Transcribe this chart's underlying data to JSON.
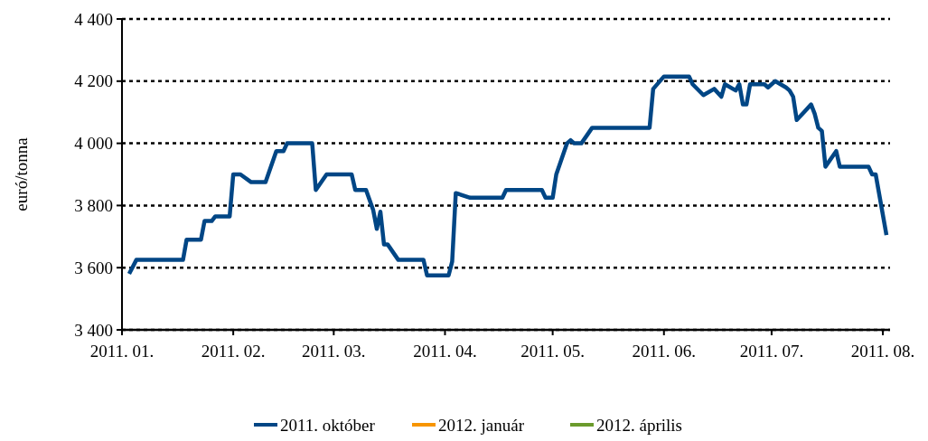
{
  "chart_data": {
    "type": "line",
    "ylabel": "euró/tonna",
    "xlim": [
      "2011-01-01",
      "2011-08-03"
    ],
    "xticks": [
      {
        "value": "2011-01-01",
        "label": "2011. 01."
      },
      {
        "value": "2011-02-01",
        "label": "2011. 02."
      },
      {
        "value": "2011-03-01",
        "label": "2011. 03."
      },
      {
        "value": "2011-04-01",
        "label": "2011. 04."
      },
      {
        "value": "2011-05-01",
        "label": "2011. 05."
      },
      {
        "value": "2011-06-01",
        "label": "2011. 06."
      },
      {
        "value": "2011-07-01",
        "label": "2011. 07."
      },
      {
        "value": "2011-08-01",
        "label": "2011. 08."
      }
    ],
    "ylim": [
      3400,
      4400
    ],
    "yticks": [
      {
        "value": 3400,
        "label": "3 400"
      },
      {
        "value": 3600,
        "label": "3 600"
      },
      {
        "value": 3800,
        "label": "3 800"
      },
      {
        "value": 4000,
        "label": "4 000"
      },
      {
        "value": 4200,
        "label": "4 200"
      },
      {
        "value": 4400,
        "label": "4 400"
      }
    ],
    "grid": "y",
    "legend": "bottom",
    "line_style": "solid",
    "marker": "none",
    "x": [
      "2011-01-03",
      "2011-01-05",
      "2011-01-18",
      "2011-01-19",
      "2011-01-23",
      "2011-01-24",
      "2011-01-26",
      "2011-01-27",
      "2011-01-31",
      "2011-02-01",
      "2011-02-03",
      "2011-02-06",
      "2011-02-10",
      "2011-02-13",
      "2011-02-15",
      "2011-02-16",
      "2011-02-23",
      "2011-02-24",
      "2011-02-27",
      "2011-03-06",
      "2011-03-07",
      "2011-03-10",
      "2011-03-12",
      "2011-03-13",
      "2011-03-14",
      "2011-03-15",
      "2011-03-16",
      "2011-03-19",
      "2011-03-26",
      "2011-03-27",
      "2011-04-02",
      "2011-04-03",
      "2011-04-04",
      "2011-04-08",
      "2011-04-17",
      "2011-04-18",
      "2011-04-28",
      "2011-04-29",
      "2011-05-01",
      "2011-05-02",
      "2011-05-05",
      "2011-05-06",
      "2011-05-07",
      "2011-05-09",
      "2011-05-12",
      "2011-05-28",
      "2011-05-29",
      "2011-06-01",
      "2011-06-08",
      "2011-06-09",
      "2011-06-12",
      "2011-06-15",
      "2011-06-17",
      "2011-06-18",
      "2011-06-21",
      "2011-06-22",
      "2011-06-23",
      "2011-06-24",
      "2011-06-25",
      "2011-06-29",
      "2011-06-30",
      "2011-07-02",
      "2011-07-05",
      "2011-07-06",
      "2011-07-07",
      "2011-07-08",
      "2011-07-10",
      "2011-07-12",
      "2011-07-13",
      "2011-07-14",
      "2011-07-15",
      "2011-07-16",
      "2011-07-19",
      "2011-07-20",
      "2011-07-28",
      "2011-07-29",
      "2011-07-30",
      "2011-08-02"
    ],
    "series": [
      {
        "name": "2011. október",
        "color": "#004685",
        "values": [
          3580,
          3625,
          3625,
          3690,
          3690,
          3750,
          3750,
          3765,
          3765,
          3900,
          3900,
          3875,
          3875,
          3975,
          3975,
          4000,
          4000,
          3850,
          3900,
          3900,
          3850,
          3850,
          3785,
          3725,
          3780,
          3675,
          3675,
          3625,
          3625,
          3575,
          3575,
          3620,
          3840,
          3825,
          3825,
          3850,
          3850,
          3825,
          3825,
          3900,
          4000,
          4010,
          4000,
          4000,
          4050,
          4050,
          4175,
          4215,
          4215,
          4190,
          4155,
          4175,
          4150,
          4190,
          4170,
          4190,
          4125,
          4125,
          4190,
          4190,
          4180,
          4200,
          4180,
          4170,
          4150,
          4075,
          4100,
          4125,
          4095,
          4050,
          4040,
          3925,
          3975,
          3925,
          3925,
          3900,
          3900,
          3705
        ]
      },
      {
        "name": "2012. január",
        "color": "#f79500",
        "values": [
          null,
          null,
          null,
          null,
          null,
          null,
          null,
          null,
          null,
          null,
          null,
          null,
          null,
          null,
          null,
          null,
          null,
          null,
          null,
          null,
          null,
          null,
          null,
          null,
          null,
          null,
          null,
          null,
          null,
          null,
          null,
          null,
          null,
          null,
          null,
          null,
          null,
          null,
          null,
          null,
          null,
          null,
          null,
          null,
          null,
          null,
          null,
          null,
          null,
          null,
          null,
          null,
          null,
          null,
          null,
          null,
          null,
          null,
          null,
          null,
          null,
          null,
          null,
          null,
          null,
          null,
          null,
          null,
          null,
          null,
          null,
          null,
          null,
          null,
          null,
          null,
          null,
          null
        ]
      },
      {
        "name": "2012. április",
        "color": "#6b9b2d",
        "values": [
          null,
          null,
          null,
          null,
          null,
          null,
          null,
          null,
          null,
          null,
          null,
          null,
          null,
          null,
          null,
          null,
          null,
          null,
          null,
          null,
          null,
          null,
          null,
          null,
          null,
          null,
          null,
          null,
          null,
          null,
          null,
          null,
          null,
          null,
          null,
          null,
          null,
          null,
          null,
          null,
          null,
          null,
          null,
          null,
          null,
          null,
          null,
          null,
          null,
          null,
          null,
          null,
          null,
          null,
          null,
          null,
          null,
          null,
          null,
          null,
          null,
          null,
          null,
          null,
          null,
          null,
          null,
          null,
          null,
          null,
          null,
          null,
          null,
          null,
          null,
          null,
          null,
          null
        ]
      }
    ]
  }
}
